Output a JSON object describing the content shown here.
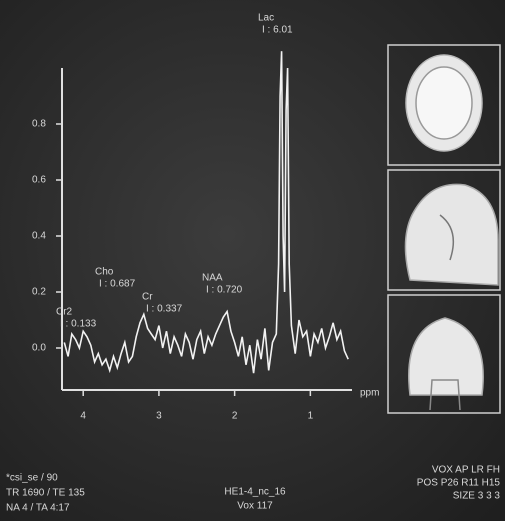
{
  "chart_data": {
    "type": "line",
    "x": [
      4.25,
      4.2,
      4.15,
      4.1,
      4.05,
      4.0,
      3.95,
      3.9,
      3.85,
      3.8,
      3.75,
      3.7,
      3.65,
      3.6,
      3.55,
      3.5,
      3.45,
      3.4,
      3.35,
      3.3,
      3.25,
      3.2,
      3.15,
      3.1,
      3.05,
      3.0,
      2.95,
      2.9,
      2.85,
      2.8,
      2.75,
      2.7,
      2.65,
      2.6,
      2.55,
      2.5,
      2.45,
      2.4,
      2.35,
      2.3,
      2.25,
      2.2,
      2.15,
      2.1,
      2.05,
      2.0,
      1.95,
      1.9,
      1.85,
      1.8,
      1.75,
      1.7,
      1.65,
      1.6,
      1.55,
      1.5,
      1.45,
      1.42,
      1.4,
      1.38,
      1.36,
      1.34,
      1.32,
      1.3,
      1.28,
      1.25,
      1.2,
      1.15,
      1.1,
      1.05,
      1.0,
      0.95,
      0.9,
      0.85,
      0.8,
      0.75,
      0.7,
      0.65,
      0.6,
      0.55,
      0.5
    ],
    "values": [
      0.02,
      -0.03,
      0.05,
      0.03,
      0.0,
      0.06,
      0.04,
      0.01,
      -0.05,
      -0.02,
      -0.06,
      -0.04,
      -0.08,
      -0.03,
      -0.07,
      -0.02,
      0.02,
      -0.05,
      -0.03,
      0.04,
      0.09,
      0.12,
      0.07,
      0.05,
      0.03,
      0.08,
      0.0,
      0.06,
      -0.02,
      0.04,
      0.01,
      -0.03,
      0.05,
      0.02,
      -0.04,
      0.03,
      0.06,
      -0.02,
      0.04,
      0.01,
      0.05,
      0.08,
      0.11,
      0.13,
      0.06,
      0.02,
      -0.03,
      0.04,
      -0.06,
      0.01,
      -0.09,
      0.03,
      -0.04,
      0.07,
      -0.08,
      0.02,
      0.05,
      0.3,
      0.9,
      1.06,
      0.4,
      0.2,
      0.85,
      1.0,
      0.3,
      0.08,
      -0.02,
      0.1,
      0.04,
      0.06,
      -0.03,
      0.05,
      0.02,
      0.07,
      0.0,
      0.04,
      0.09,
      0.03,
      0.06,
      -0.01,
      -0.04
    ],
    "color": "#f2f2f2",
    "xlim": [
      4.28,
      0.45
    ],
    "xticks": [
      4,
      3,
      2,
      1
    ],
    "x_label": "ppm",
    "ylim": [
      -0.15,
      1.0
    ],
    "yticks": [
      {
        "value": 0,
        "label": "0.0"
      },
      0.2,
      0.4,
      0.6,
      0.8
    ],
    "annotations": [
      {
        "name": "Cr2",
        "integral": "I : 0.133"
      },
      {
        "name": "Cho",
        "integral": "I : 0.687"
      },
      {
        "name": "Cr",
        "integral": "I : 0.337"
      },
      {
        "name": "NAA",
        "integral": "I : 0.720"
      },
      {
        "name": "Lac",
        "integral": "I : 6.01"
      }
    ]
  },
  "footer": {
    "left": [
      "*csi_se / 90",
      "TR 1690 / TE 135",
      "NA 4 / TA 4:17"
    ],
    "center": [
      "HE1-4_nc_16",
      "Vox 117"
    ],
    "right": [
      "VOX AP LR FH",
      "POS P26 R11 H15",
      "SIZE 3 3 3"
    ]
  }
}
